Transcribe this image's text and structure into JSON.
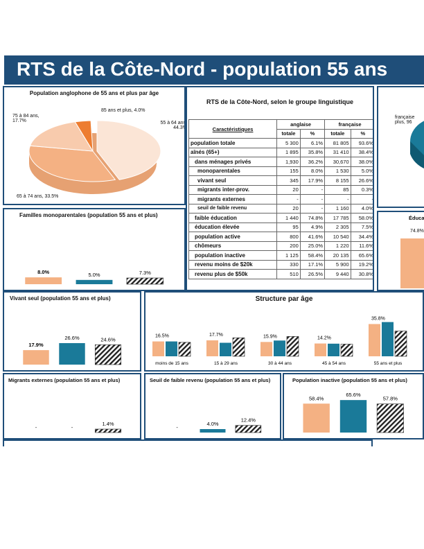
{
  "title": "RTS de la Côte-Nord - population 55 ans",
  "colors": {
    "anglaise": "#f4b183",
    "francaise": "#1a7a99",
    "hatch": "#222222",
    "banner": "#1f4e79"
  },
  "pie": {
    "title": "Population anglophone de 55 ans et plus par âge",
    "slices": [
      {
        "label": "55 à 64 ans, 44.3%",
        "value": 44.3
      },
      {
        "label": "65 à 74 ans, 33.5%",
        "value": 33.5
      },
      {
        "label": "75 à 84 ans, 17.7%",
        "value": 17.7
      },
      {
        "label": "85 ans et plus, 4.0%",
        "value": 4.0
      }
    ]
  },
  "table": {
    "title": "RTS de la Côte-Nord, selon le groupe linguistique",
    "col_car": "Caractéristiques",
    "col_anglaise": "anglaise",
    "col_francaise": "française",
    "col_totale": "totale",
    "col_pct": "%",
    "rows": [
      {
        "label": "population totale",
        "a_tot": "5 300",
        "a_pct": "6.1%",
        "f_tot": "81 805",
        "f_pct": "93.6%"
      },
      {
        "label": "aînés (65+)",
        "a_tot": "1 895",
        "a_pct": "35.8%",
        "f_tot": "31 410",
        "f_pct": "38.4%"
      },
      {
        "label": "dans ménages privés",
        "a_tot": "1,930",
        "a_pct": "36.2%",
        "f_tot": "30,670",
        "f_pct": "38.0%"
      },
      {
        "label": "monoparentales",
        "a_tot": "155",
        "a_pct": "8.0%",
        "f_tot": "1 530",
        "f_pct": "5.0%"
      },
      {
        "label": "vivant seul",
        "a_tot": "345",
        "a_pct": "17.9%",
        "f_tot": "8 155",
        "f_pct": "26.6%"
      },
      {
        "label": "migrants inter-prov.",
        "a_tot": "20",
        "a_pct": "-",
        "f_tot": "85",
        "f_pct": "0.3%"
      },
      {
        "label": "migrants externes",
        "a_tot": "-",
        "a_pct": "-",
        "f_tot": "-",
        "f_pct": "-"
      },
      {
        "label": "seuil de faible revenu",
        "a_tot": "20",
        "a_pct": "-",
        "f_tot": "1 160",
        "f_pct": "4.0%"
      },
      {
        "label": "faible éducation",
        "a_tot": "1 440",
        "a_pct": "74.8%",
        "f_tot": "17 785",
        "f_pct": "58.0%"
      },
      {
        "label": "éducation élevée",
        "a_tot": "95",
        "a_pct": "4.9%",
        "f_tot": "2 305",
        "f_pct": "7.5%"
      },
      {
        "label": "population active",
        "a_tot": "800",
        "a_pct": "41.6%",
        "f_tot": "10 540",
        "f_pct": "34.4%"
      },
      {
        "label": "chômeurs",
        "a_tot": "200",
        "a_pct": "25.0%",
        "f_tot": "1 220",
        "f_pct": "11.6%"
      },
      {
        "label": "population inactive",
        "a_tot": "1 125",
        "a_pct": "58.4%",
        "f_tot": "20 135",
        "f_pct": "65.6%"
      },
      {
        "label": "revenu moins de $20k",
        "a_tot": "330",
        "a_pct": "17.1%",
        "f_tot": "5 900",
        "f_pct": "19.2%"
      },
      {
        "label": "revenu plus de $50k",
        "a_tot": "510",
        "a_pct": "26.5%",
        "f_tot": "9 440",
        "f_pct": "30.8%"
      }
    ]
  },
  "right_cut": {
    "pie_label": "française plus, 96",
    "educ_title": "Éduca",
    "educ_value": "74.8%"
  },
  "chart_data": [
    {
      "type": "bar",
      "id": "mono",
      "title": "Familles monoparentales (population 55 ans et plus)",
      "values": [
        8.0,
        5.0,
        7.3
      ],
      "labels": [
        "8.0%",
        "5.0%",
        "7.3%"
      ],
      "ylim": [
        0,
        60
      ]
    },
    {
      "type": "bar",
      "id": "seul",
      "title": "Vivant seul (population 55 ans et plus)",
      "values": [
        17.9,
        26.6,
        24.6
      ],
      "labels": [
        "17.9%",
        "26.6%",
        "24.6%"
      ],
      "ylim": [
        0,
        60
      ]
    },
    {
      "type": "bar",
      "id": "age",
      "title": "Structure par âge",
      "categories": [
        "moins de 15 ans",
        "15 à 29 ans",
        "30 à 44 ans",
        "45 à 54 ans",
        "55 ans et plus"
      ],
      "series": [
        {
          "values": [
            16.5,
            17.7,
            15.9,
            14.2,
            35.8
          ]
        },
        {
          "values": [
            16.5,
            15.0,
            17.5,
            14.0,
            38.0
          ]
        },
        {
          "values": [
            15.5,
            20.5,
            22.0,
            13.5,
            28.0
          ]
        }
      ],
      "labels": [
        "16.5%",
        "17.7%",
        "15.9%",
        "14.2%",
        "35.8%"
      ],
      "ylim": [
        0,
        40
      ]
    },
    {
      "type": "bar",
      "id": "migr",
      "title": "Migrants externes (population 55 ans et plus)",
      "values": [
        0,
        0,
        1.4
      ],
      "labels": [
        "-",
        "-",
        "1.4%"
      ],
      "ylim": [
        0,
        60
      ]
    },
    {
      "type": "bar",
      "id": "seuil",
      "title": "Seuil de faible revenu (population 55 ans et plus)",
      "values": [
        0,
        4.0,
        12.4
      ],
      "labels": [
        "-",
        "4.0%",
        "12.4%"
      ],
      "ylim": [
        0,
        60
      ]
    },
    {
      "type": "bar",
      "id": "inact",
      "title": "Population inactive (population 55 ans et plus)",
      "values": [
        58.4,
        65.6,
        57.8
      ],
      "labels": [
        "58.4%",
        "65.6%",
        "57.8%"
      ],
      "ylim": [
        0,
        70
      ]
    }
  ]
}
